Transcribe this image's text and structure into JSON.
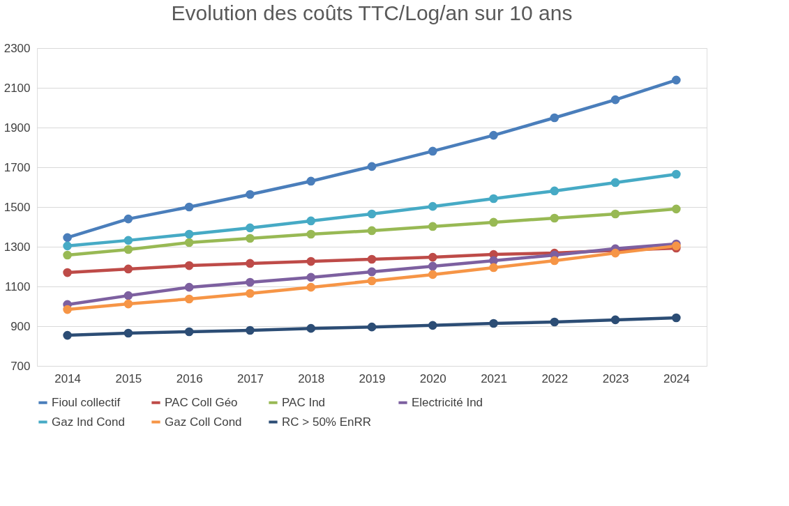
{
  "chart_data": {
    "type": "line",
    "title": "Evolution des coûts TTC/Log/an sur 10 ans",
    "categories": [
      "2014",
      "2015",
      "2016",
      "2017",
      "2018",
      "2019",
      "2020",
      "2021",
      "2022",
      "2023",
      "2024"
    ],
    "series": [
      {
        "name": "Fioul collectif",
        "color": "#4a7ebb",
        "values": [
          1346,
          1440,
          1500,
          1563,
          1630,
          1704,
          1781,
          1861,
          1949,
          2040,
          2139
        ]
      },
      {
        "name": "PAC Coll Géo",
        "color": "#be4b48",
        "values": [
          1170,
          1188,
          1205,
          1216,
          1226,
          1237,
          1247,
          1261,
          1268,
          1282,
          1293
        ]
      },
      {
        "name": "PAC Ind",
        "color": "#98b954",
        "values": [
          1258,
          1286,
          1321,
          1342,
          1363,
          1381,
          1402,
          1423,
          1444,
          1465,
          1490
        ]
      },
      {
        "name": "Electricité Ind",
        "color": "#7d60a0",
        "values": [
          1009,
          1054,
          1096,
          1121,
          1146,
          1174,
          1202,
          1230,
          1258,
          1290,
          1314
        ]
      },
      {
        "name": "Gaz Ind Cond",
        "color": "#46aac5",
        "values": [
          1304,
          1332,
          1363,
          1395,
          1430,
          1465,
          1503,
          1542,
          1581,
          1623,
          1665
        ]
      },
      {
        "name": "Gaz Coll Cond",
        "color": "#f69546",
        "values": [
          984,
          1012,
          1037,
          1065,
          1096,
          1128,
          1160,
          1195,
          1230,
          1268,
          1304
        ]
      },
      {
        "name": "RC > 50% EnRR",
        "color": "#2c4d75",
        "values": [
          854,
          865,
          872,
          879,
          889,
          896,
          904,
          914,
          921,
          932,
          942
        ]
      }
    ],
    "ylim": [
      700,
      2300
    ],
    "yticks": [
      700,
      900,
      1100,
      1300,
      1500,
      1700,
      1900,
      2100,
      2300
    ],
    "grid": "y",
    "legend": "bottom",
    "marker": "circle",
    "line_style": "solid"
  }
}
